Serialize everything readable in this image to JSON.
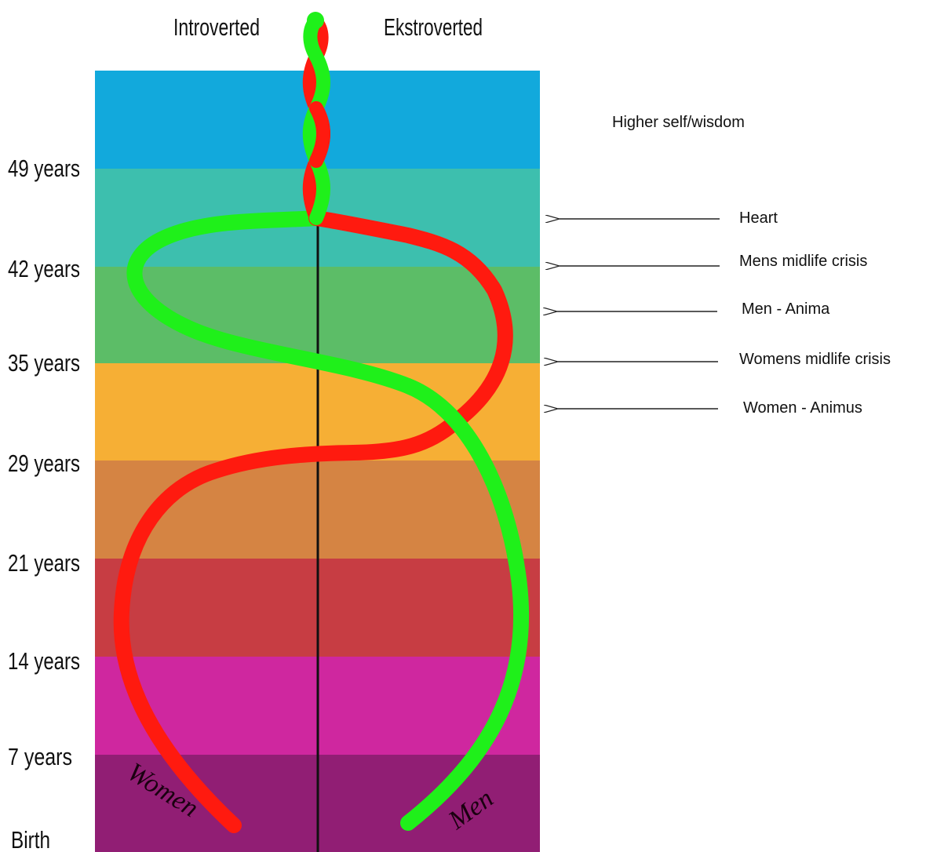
{
  "header": {
    "left_label": "Introverted",
    "right_label": "Ekstroverted"
  },
  "bands": [
    {
      "color": "#12a9dc"
    },
    {
      "color": "#3dbfae"
    },
    {
      "color": "#5cbd67"
    },
    {
      "color": "#f6af35"
    },
    {
      "color": "#d58443"
    },
    {
      "color": "#c73d43"
    },
    {
      "color": "#cf279f"
    },
    {
      "color": "#911e74"
    }
  ],
  "age_labels": [
    "49 years",
    "42 years",
    "35 years",
    "29 years",
    "21 years",
    "14 years",
    "7 years",
    "Birth"
  ],
  "annotations": {
    "higher_self": "Higher self/wisdom",
    "heart": "Heart",
    "mens_midlife": "Mens midlife crisis",
    "men_anima": "Men - Anima",
    "womens_midlife": "Womens midlife crisis",
    "women_animus": "Women - Animus"
  },
  "curves": {
    "women": {
      "label": "Women",
      "color": "#ff1a0f"
    },
    "men": {
      "label": "Men",
      "color": "#1ff01a"
    }
  }
}
